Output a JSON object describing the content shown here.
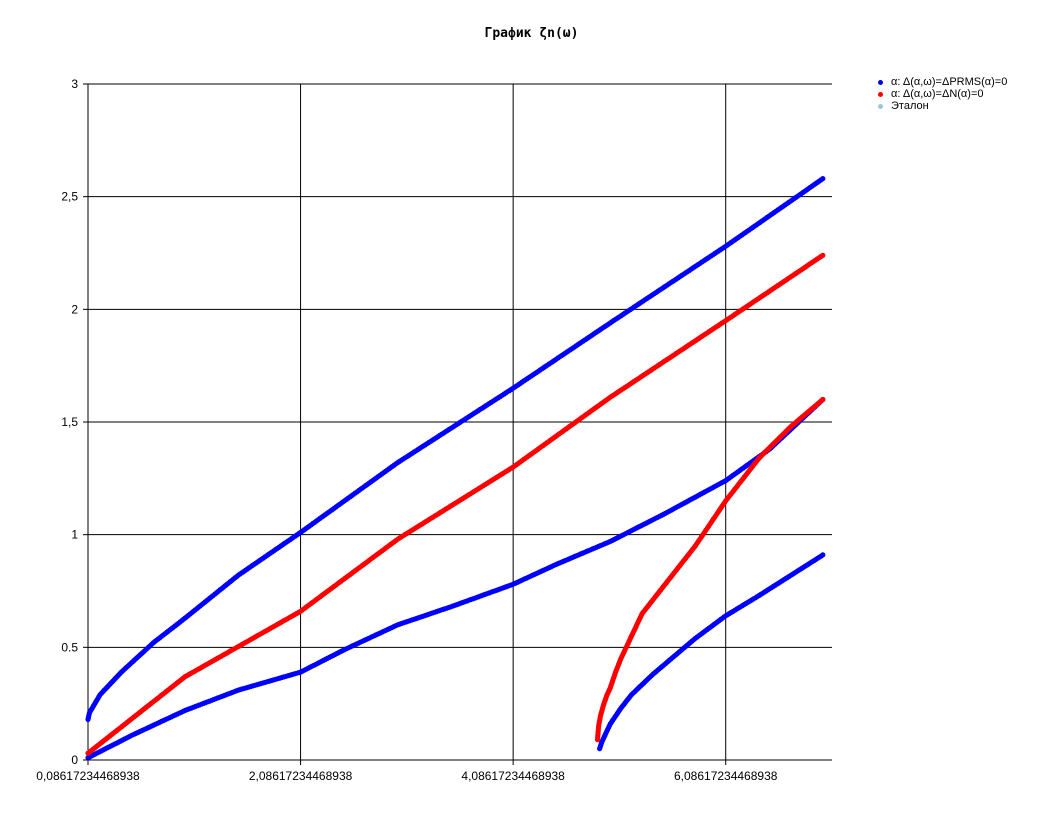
{
  "chart_data": {
    "type": "scatter",
    "title": "График ζn(ω)",
    "xlabel": "",
    "ylabel": "",
    "xlim": [
      0.0861723446893788,
      7.0861723446938
    ],
    "ylim": [
      0,
      3
    ],
    "x_ticks": [
      {
        "value": 0.0861723446893788,
        "label": "0,08617234468938"
      },
      {
        "value": 2.08617234468938,
        "label": "2,08617234468938"
      },
      {
        "value": 4.08617234468938,
        "label": "4,08617234468938"
      },
      {
        "value": 6.08617234468938,
        "label": "6,08617234468938"
      }
    ],
    "y_ticks": [
      {
        "value": 0,
        "label": "0"
      },
      {
        "value": 0.5,
        "label": "0.5"
      },
      {
        "value": 1,
        "label": "1"
      },
      {
        "value": 1.5,
        "label": "1,5"
      },
      {
        "value": 2,
        "label": "2"
      },
      {
        "value": 2.5,
        "label": "2,5"
      },
      {
        "value": 3,
        "label": "3"
      }
    ],
    "grid": true,
    "legend_position": "top-right",
    "series": [
      {
        "name": "α: Δ(α,ω)=ΔPRMS(α)=0",
        "color": "#0000ff",
        "branches": [
          {
            "x": [
              0.086,
              0.1,
              0.2,
              0.4,
              0.7,
              1.0,
              1.5,
              2.086,
              3.0,
              4.086,
              5.0,
              6.086,
              7.0
            ],
            "y": [
              0.18,
              0.21,
              0.29,
              0.39,
              0.52,
              0.63,
              0.82,
              1.01,
              1.32,
              1.65,
              1.94,
              2.28,
              2.58
            ]
          },
          {
            "x": [
              0.086,
              0.5,
              1.0,
              1.5,
              2.086,
              2.5,
              3.0,
              3.5,
              4.086,
              4.5,
              5.0,
              5.5,
              6.086,
              6.5,
              7.0
            ],
            "y": [
              0.01,
              0.11,
              0.22,
              0.31,
              0.39,
              0.49,
              0.6,
              0.68,
              0.78,
              0.87,
              0.97,
              1.09,
              1.24,
              1.38,
              1.6
            ]
          },
          {
            "x": [
              4.9,
              4.92,
              4.95,
              5.0,
              5.1,
              5.2,
              5.4,
              5.6,
              5.8,
              6.086,
              6.4,
              6.7,
              7.0
            ],
            "y": [
              0.05,
              0.08,
              0.11,
              0.16,
              0.23,
              0.29,
              0.38,
              0.46,
              0.54,
              0.64,
              0.73,
              0.82,
              0.91
            ]
          }
        ]
      },
      {
        "name": "α: Δ(α,ω)=ΔN(α)=0",
        "color": "#ff0000",
        "branches": [
          {
            "x": [
              0.086,
              1.0,
              2.086,
              3.0,
              4.086,
              5.0,
              6.086,
              7.0
            ],
            "y": [
              0.03,
              0.37,
              0.66,
              0.98,
              1.3,
              1.61,
              1.95,
              2.24
            ]
          },
          {
            "x": [
              4.88,
              4.89,
              4.91,
              4.94,
              4.97,
              5.0,
              5.05,
              5.1,
              5.2,
              5.3,
              5.45,
              5.6,
              5.8,
              6.086,
              6.4,
              6.7,
              7.0
            ],
            "y": [
              0.09,
              0.15,
              0.2,
              0.25,
              0.29,
              0.32,
              0.39,
              0.45,
              0.55,
              0.65,
              0.74,
              0.83,
              0.95,
              1.15,
              1.34,
              1.48,
              1.6
            ]
          }
        ]
      },
      {
        "name": "Эталон",
        "color": "#9ec5d6",
        "branches": []
      }
    ]
  }
}
